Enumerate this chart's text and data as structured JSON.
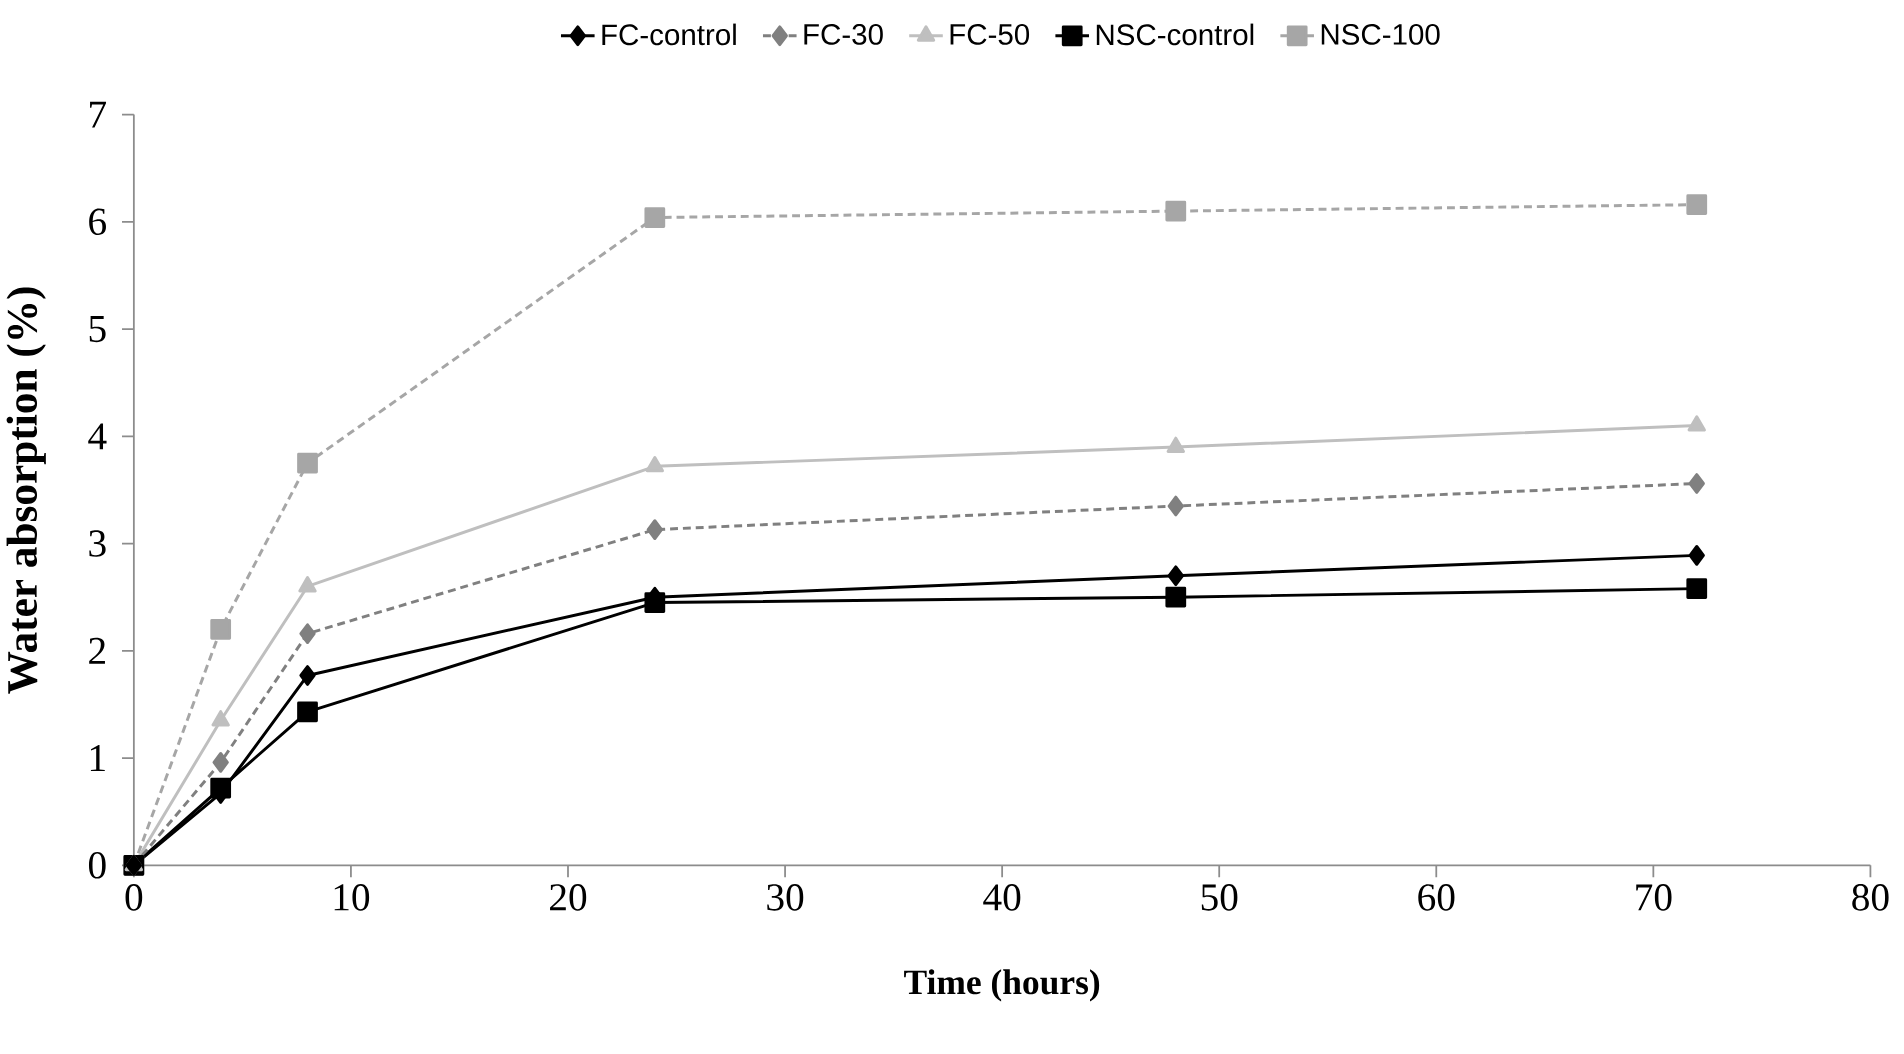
{
  "chart_data": {
    "type": "line",
    "xlabel": "Time (hours)",
    "ylabel": "Water absorption (%)",
    "xlim": [
      0,
      80
    ],
    "ylim": [
      0,
      7
    ],
    "xticks": [
      0,
      10,
      20,
      30,
      40,
      50,
      60,
      70,
      80
    ],
    "yticks": [
      0,
      1,
      2,
      3,
      4,
      5,
      6,
      7
    ],
    "grid": false,
    "legend": "top",
    "x": [
      0,
      4,
      8,
      24,
      48,
      72
    ],
    "series": [
      {
        "name": "FC-control",
        "color": "#000000",
        "marker": "diamond",
        "line_style": "solid",
        "values": [
          0,
          0.67,
          1.77,
          2.5,
          2.7,
          2.89
        ]
      },
      {
        "name": "FC-30",
        "color": "#808080",
        "marker": "diamond",
        "line_style": "dashed",
        "values": [
          0,
          0.96,
          2.16,
          3.13,
          3.35,
          3.56
        ]
      },
      {
        "name": "FC-50",
        "color": "#bfbfbf",
        "marker": "triangle",
        "line_style": "solid",
        "values": [
          0,
          1.35,
          2.6,
          3.72,
          3.9,
          4.1
        ]
      },
      {
        "name": "NSC-control",
        "color": "#000000",
        "marker": "square",
        "line_style": "solid",
        "values": [
          0,
          0.72,
          1.43,
          2.45,
          2.5,
          2.58
        ]
      },
      {
        "name": "NSC-100",
        "color": "#a6a6a6",
        "marker": "square",
        "line_style": "dashed",
        "values": [
          0,
          2.2,
          3.75,
          6.04,
          6.1,
          6.16
        ]
      }
    ]
  }
}
